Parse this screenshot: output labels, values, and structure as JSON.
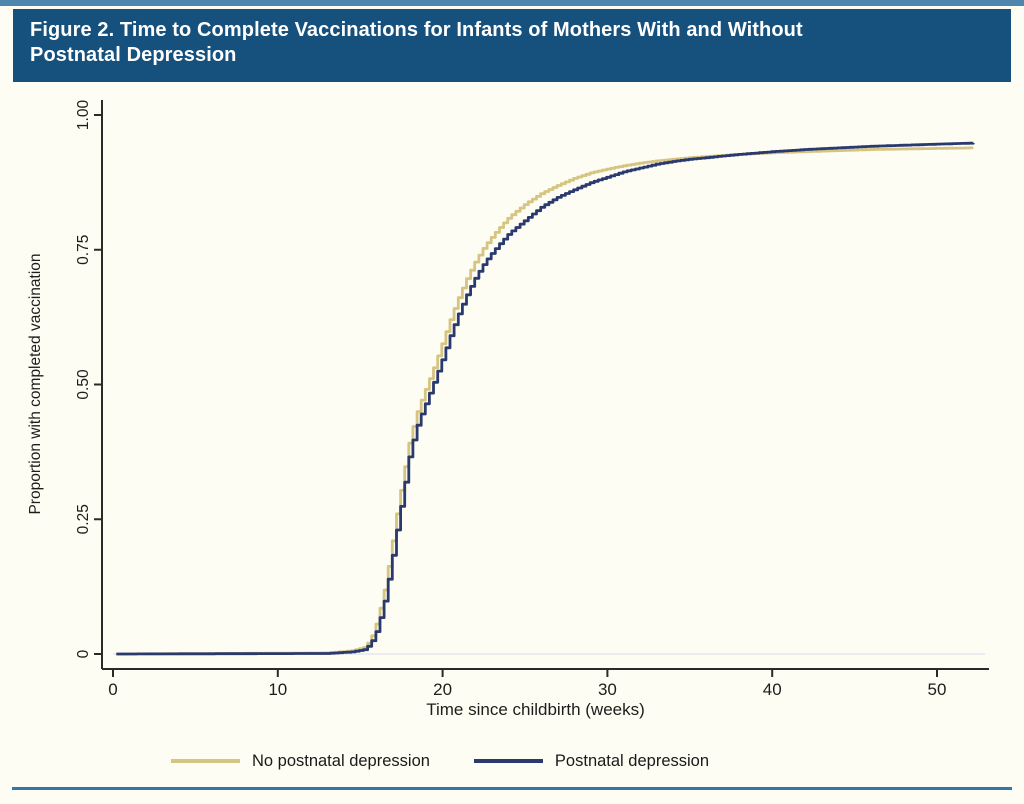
{
  "header": {
    "title_line1": "Figure 2. Time to Complete Vaccinations for Infants of Mothers With and Without",
    "title_line2": "Postnatal Depression",
    "bar_color": "#16517d",
    "accent_strip_color": "#4f86ae"
  },
  "footer": {
    "rule_color": "#3377a6"
  },
  "chart_data": {
    "type": "line",
    "subtype": "kaplan-meier-step",
    "title": "Time to Complete Vaccinations for Infants of Mothers With and Without Postnatal Depression",
    "xlabel": "Time since childbirth (weeks)",
    "ylabel": "Proportion with completed vaccination",
    "xlim": [
      0,
      53
    ],
    "ylim": [
      0,
      1.0
    ],
    "xticks": [
      0,
      10,
      20,
      30,
      40,
      50
    ],
    "ytick_values": [
      0,
      0.25,
      0.5,
      0.75,
      1.0
    ],
    "ytick_labels": [
      "0",
      "0.25",
      "0.50",
      "0.75",
      "1.00"
    ],
    "grid": "horizontal gridline at y=0 only",
    "legend_position": "bottom-center",
    "axis_color": "#2a2a28",
    "zero_gridline_color": "#e3e7f1",
    "series": [
      {
        "name": "No postnatal depression",
        "color": "#d5c581",
        "points": [
          [
            0.2,
            0
          ],
          [
            13,
            0.002
          ],
          [
            14.5,
            0.006
          ],
          [
            15.2,
            0.012
          ],
          [
            15.6,
            0.025
          ],
          [
            16,
            0.06
          ],
          [
            16.4,
            0.11
          ],
          [
            16.8,
            0.18
          ],
          [
            17.2,
            0.26
          ],
          [
            17.6,
            0.33
          ],
          [
            18,
            0.4
          ],
          [
            18.5,
            0.455
          ],
          [
            19,
            0.495
          ],
          [
            19.5,
            0.535
          ],
          [
            20,
            0.58
          ],
          [
            20.5,
            0.625
          ],
          [
            21,
            0.665
          ],
          [
            21.5,
            0.7
          ],
          [
            22,
            0.73
          ],
          [
            22.5,
            0.755
          ],
          [
            23,
            0.775
          ],
          [
            23.5,
            0.793
          ],
          [
            24,
            0.81
          ],
          [
            25,
            0.835
          ],
          [
            26,
            0.855
          ],
          [
            27,
            0.87
          ],
          [
            28,
            0.883
          ],
          [
            29,
            0.893
          ],
          [
            30,
            0.9
          ],
          [
            31,
            0.906
          ],
          [
            32,
            0.911
          ],
          [
            33,
            0.915
          ],
          [
            34,
            0.918
          ],
          [
            35,
            0.921
          ],
          [
            36,
            0.923
          ],
          [
            38,
            0.927
          ],
          [
            40,
            0.93
          ],
          [
            42,
            0.932
          ],
          [
            44,
            0.934
          ],
          [
            46,
            0.936
          ],
          [
            48,
            0.937
          ],
          [
            50,
            0.938
          ],
          [
            52.2,
            0.939
          ]
        ]
      },
      {
        "name": "Postnatal depression",
        "color": "#2b3a6e",
        "points": [
          [
            0.2,
            0
          ],
          [
            13,
            0.001
          ],
          [
            14.5,
            0.004
          ],
          [
            15.2,
            0.008
          ],
          [
            15.6,
            0.018
          ],
          [
            16,
            0.045
          ],
          [
            16.4,
            0.09
          ],
          [
            16.8,
            0.155
          ],
          [
            17.2,
            0.23
          ],
          [
            17.6,
            0.3
          ],
          [
            18,
            0.375
          ],
          [
            18.5,
            0.43
          ],
          [
            19,
            0.468
          ],
          [
            19.5,
            0.508
          ],
          [
            20,
            0.55
          ],
          [
            20.5,
            0.595
          ],
          [
            21,
            0.635
          ],
          [
            21.5,
            0.67
          ],
          [
            22,
            0.7
          ],
          [
            22.5,
            0.725
          ],
          [
            23,
            0.745
          ],
          [
            23.5,
            0.763
          ],
          [
            24,
            0.78
          ],
          [
            25,
            0.805
          ],
          [
            26,
            0.83
          ],
          [
            27,
            0.848
          ],
          [
            28,
            0.862
          ],
          [
            29,
            0.875
          ],
          [
            30,
            0.885
          ],
          [
            31,
            0.895
          ],
          [
            32,
            0.902
          ],
          [
            33,
            0.909
          ],
          [
            34,
            0.914
          ],
          [
            35,
            0.918
          ],
          [
            36,
            0.921
          ],
          [
            38,
            0.927
          ],
          [
            40,
            0.932
          ],
          [
            42,
            0.936
          ],
          [
            44,
            0.939
          ],
          [
            46,
            0.942
          ],
          [
            48,
            0.944
          ],
          [
            50,
            0.946
          ],
          [
            52.2,
            0.948
          ]
        ]
      }
    ]
  }
}
